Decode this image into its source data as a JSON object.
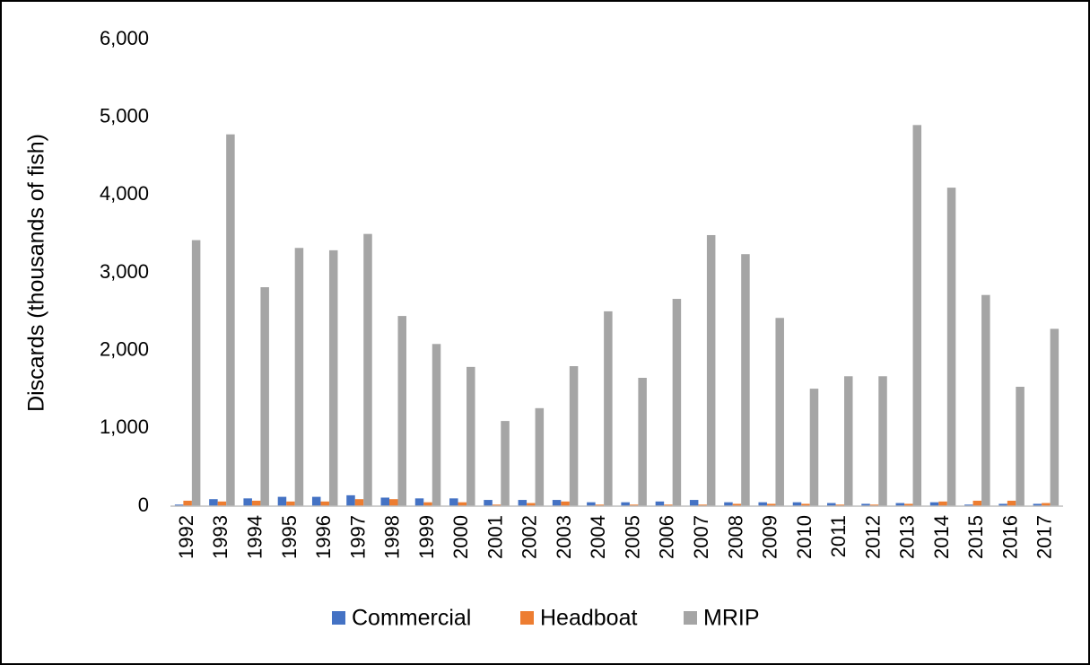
{
  "chart_data": {
    "type": "bar",
    "y_label": "Discards (thousands of fish)",
    "categories": [
      "1992",
      "1993",
      "1994",
      "1995",
      "1996",
      "1997",
      "1998",
      "1999",
      "2000",
      "2001",
      "2002",
      "2003",
      "2004",
      "2005",
      "2006",
      "2007",
      "2008",
      "2009",
      "2010",
      "2011",
      "2012",
      "2013",
      "2014",
      "2015",
      "2016",
      "2017"
    ],
    "series": [
      {
        "name": "Commercial",
        "color": "#4472c4",
        "values": [
          20,
          90,
          100,
          120,
          120,
          140,
          110,
          100,
          100,
          80,
          80,
          80,
          50,
          50,
          60,
          80,
          50,
          50,
          50,
          40,
          30,
          40,
          50,
          20,
          30,
          30
        ]
      },
      {
        "name": "Headboat",
        "color": "#ed7d31",
        "values": [
          70,
          60,
          70,
          60,
          60,
          90,
          90,
          50,
          50,
          20,
          40,
          60,
          20,
          20,
          20,
          20,
          30,
          30,
          30,
          20,
          20,
          30,
          60,
          70,
          70,
          40
        ]
      },
      {
        "name": "MRIP",
        "color": "#a5a5a5",
        "values": [
          3420,
          4780,
          2815,
          3320,
          3290,
          3500,
          2445,
          2085,
          1790,
          1095,
          1260,
          1800,
          2505,
          1650,
          2665,
          3485,
          3240,
          2420,
          1510,
          1670,
          1670,
          4900,
          4095,
          2715,
          1535,
          2280
        ]
      }
    ],
    "ylim": [
      0,
      6000
    ],
    "yticks": [
      0,
      {
        "value": 1000,
        "label": "1,000"
      },
      {
        "value": 2000,
        "label": "2,000"
      },
      {
        "value": 3000,
        "label": "3,000"
      },
      {
        "value": 4000,
        "label": "4,000"
      },
      {
        "value": 5000,
        "label": "5,000"
      },
      {
        "value": 6000,
        "label": "6,000"
      }
    ],
    "grid": false,
    "legend": "bottom"
  }
}
